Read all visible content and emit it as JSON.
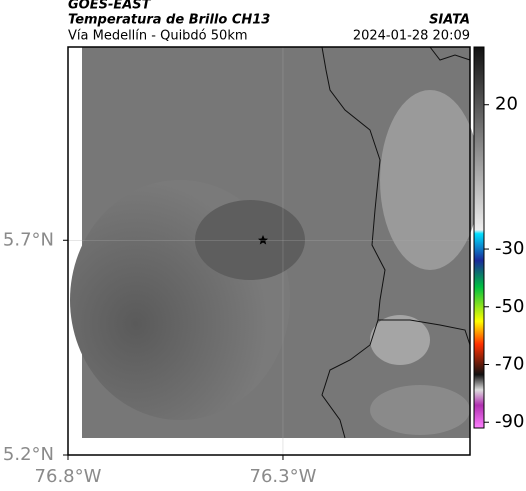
{
  "header": {
    "title": "GOES-EAST",
    "subtitle": "Temperatura de Brillo CH13",
    "region": "Vía Medellín - Quibdó 50km",
    "source": "SIATA",
    "timestamp": "2024-01-28 20:09"
  },
  "map": {
    "xlim": [
      -76.8,
      -75.865
    ],
    "ylim": [
      5.2,
      6.15
    ],
    "xticks": [
      {
        "value": -76.8,
        "label": "76.8°W"
      },
      {
        "value": -76.3,
        "label": "76.3°W"
      }
    ],
    "yticks": [
      {
        "value": 5.7,
        "label": "5.7°N"
      },
      {
        "value": 5.2,
        "label": "5.2°N"
      }
    ]
  },
  "colorbar": {
    "lim": [
      40,
      -92
    ],
    "ticks": [
      20,
      -30,
      -50,
      -70,
      -90
    ]
  }
}
